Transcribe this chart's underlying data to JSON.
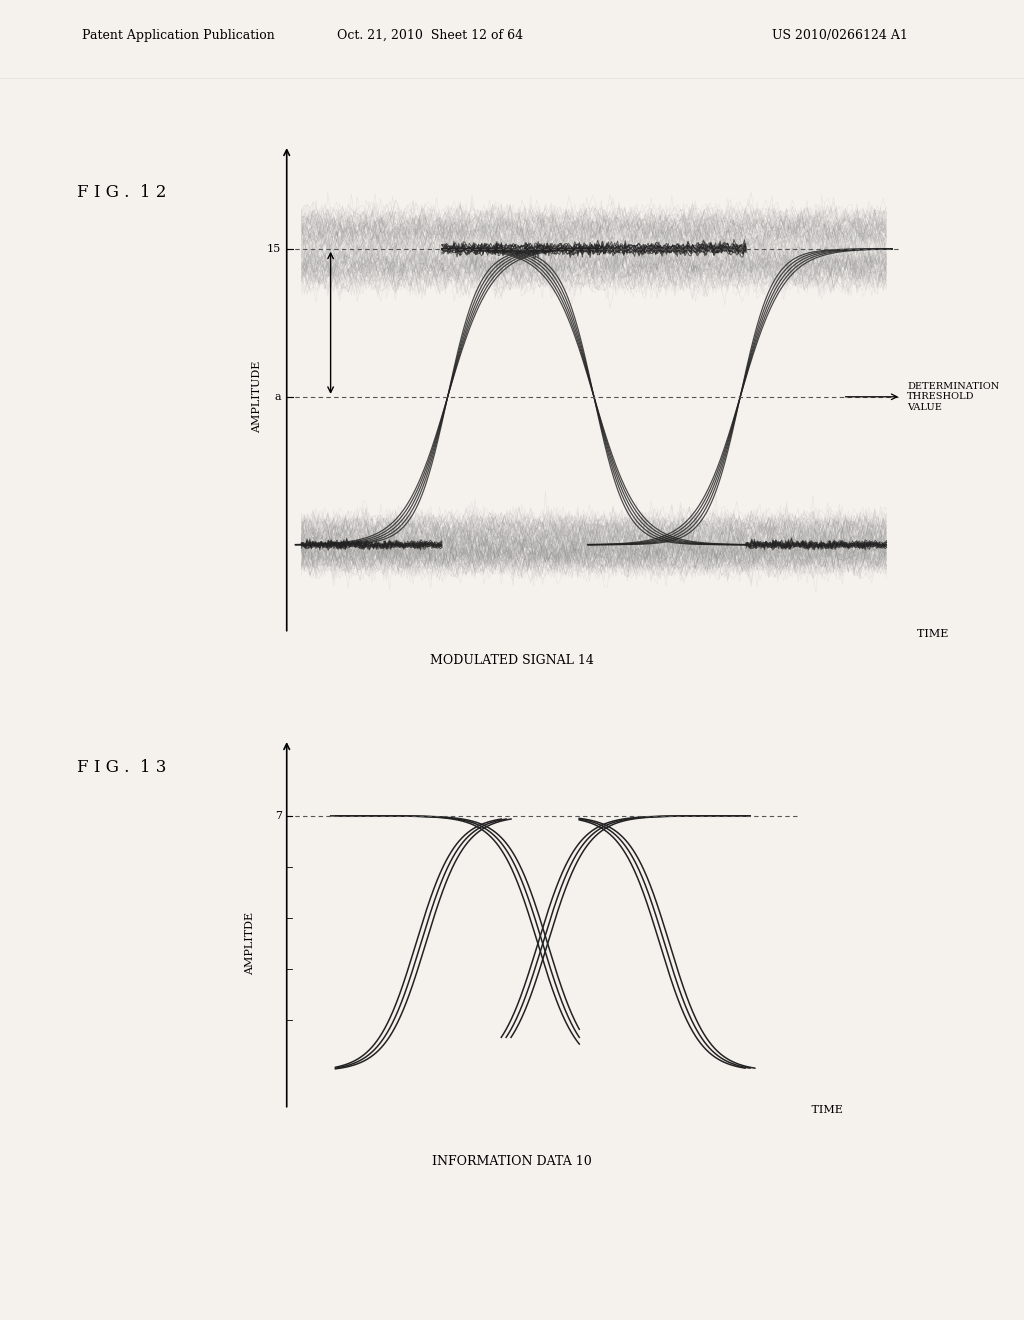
{
  "bg_color": "#f5f2ee",
  "header_text": "Patent Application Publication",
  "header_date": "Oct. 21, 2010  Sheet 12 of 64",
  "header_patent": "US 2010/0266124 A1",
  "fig12_label": "F I G .  1 2",
  "fig13_label": "F I G .  1 3",
  "fig12_caption": "MODULATED SIGNAL 14",
  "fig13_caption": "INFORMATION DATA 10",
  "fig12_xlabel": "TIME",
  "fig12_ylabel": "AMPLITUDE",
  "fig13_xlabel": "TIME",
  "fig13_ylabel": "AMPLITDE",
  "fig12_label15": "15",
  "fig12_labela": "a",
  "fig13_label7": "7",
  "det_label": "DETERMINATION\nTHRESHOLD\nVALUE",
  "line_color": "#1a1a1a",
  "noise_color": "#888888",
  "eye_color": "#222222"
}
